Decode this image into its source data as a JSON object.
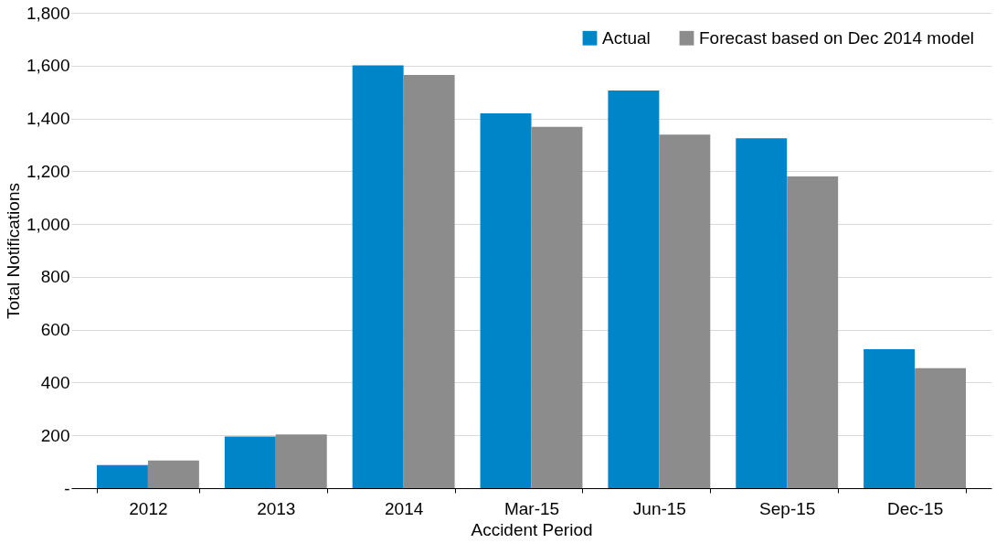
{
  "chart_data": {
    "type": "bar",
    "xlabel": "Accident Period",
    "ylabel": "Total Notifications",
    "categories": [
      "2012",
      "2013",
      "2014",
      "Mar-15",
      "Jun-15",
      "Sep-15",
      "Dec-15"
    ],
    "series": [
      {
        "name": "Actual",
        "color": "#0085c8",
        "values": [
          87,
          196,
          1601,
          1419,
          1506,
          1325,
          526
        ]
      },
      {
        "name": "Forecast based on Dec 2014 model",
        "color": "#8c8c8c",
        "values": [
          105,
          203,
          1565,
          1368,
          1339,
          1180,
          454
        ]
      }
    ],
    "ylim": [
      0,
      1800
    ],
    "yticks": [
      {
        "value": 0,
        "label": "-"
      },
      200,
      400,
      600,
      800,
      {
        "value": 1000,
        "label": "1,000"
      },
      {
        "value": 1200,
        "label": "1,200"
      },
      {
        "value": 1400,
        "label": "1,400"
      },
      {
        "value": 1600,
        "label": "1,600"
      },
      {
        "value": 1800,
        "label": "1,800"
      }
    ],
    "grid": "y",
    "legend": "top right"
  }
}
